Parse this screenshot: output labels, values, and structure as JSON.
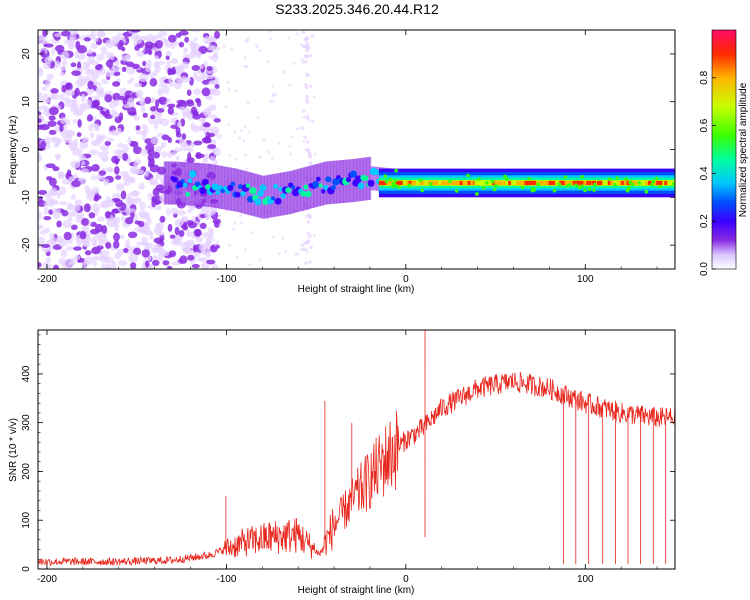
{
  "title": "S233.2025.346.20.44.R12",
  "colors": {
    "snr_line": "#e8281e",
    "axis": "#000000",
    "speckle": "#8a2be2",
    "colormap": [
      "#ffffff",
      "#e6d2ff",
      "#8a2be2",
      "#3b00ff",
      "#0050ff",
      "#00c8ff",
      "#00ff9c",
      "#3cff00",
      "#c8ff00",
      "#ffb400",
      "#ff2a00",
      "#ff0a64"
    ]
  },
  "chart_data": [
    {
      "type": "heatmap",
      "title": "",
      "xlabel": "Height of straight line (km)",
      "ylabel": "Frequency (Hz)",
      "xlim": [
        -205,
        150
      ],
      "ylim": [
        -25,
        25
      ],
      "xticks": [
        -200,
        -100,
        0,
        100
      ],
      "yticks": [
        -20,
        -10,
        0,
        10,
        20
      ],
      "colorbar": {
        "label": "Normalized spectral amplitude",
        "range": [
          0.0,
          1.0
        ],
        "ticks": [
          "0.0",
          "0.2",
          "0.4",
          "0.6",
          "0.8"
        ],
        "tick_values": [
          0.0,
          0.2,
          0.4,
          0.6,
          0.8
        ]
      },
      "features": {
        "noise_region_x": [
          -205,
          -110
        ],
        "trace_center_hz": [
          [
            -130,
            -7.0
          ],
          [
            -110,
            -7.5
          ],
          [
            -95,
            -8.5
          ],
          [
            -80,
            -10.0
          ],
          [
            -65,
            -9.0
          ],
          [
            -55,
            -8.0
          ],
          [
            -45,
            -7.0
          ],
          [
            -30,
            -6.5
          ],
          [
            -20,
            -6.0
          ],
          [
            0,
            -6.8
          ],
          [
            20,
            -7.0
          ],
          [
            60,
            -7.0
          ],
          [
            100,
            -7.0
          ],
          [
            150,
            -7.0
          ]
        ],
        "peak_band_x": [
          -15,
          150
        ],
        "peak_band_hz": -7.0
      }
    },
    {
      "type": "line",
      "title": "",
      "xlabel": "Height of straight line (km)",
      "ylabel": "SNR (10 * v/v)",
      "xlim": [
        -205,
        150
      ],
      "ylim": [
        0,
        490
      ],
      "xticks": [
        -200,
        -100,
        0,
        100
      ],
      "yticks": [
        0,
        100,
        200,
        300,
        400
      ],
      "series": [
        {
          "name": "SNR",
          "envelope_x": [
            -205,
            -160,
            -130,
            -110,
            -90,
            -75,
            -60,
            -48,
            -40,
            -30,
            -20,
            -10,
            0,
            10,
            20,
            40,
            60,
            80,
            100,
            120,
            140,
            150
          ],
          "envelope_y": [
            15,
            15,
            18,
            28,
            55,
            65,
            70,
            30,
            90,
            140,
            185,
            230,
            265,
            290,
            330,
            370,
            385,
            370,
            340,
            320,
            310,
            310
          ],
          "spikes": [
            [
              -100,
              150
            ],
            [
              -45,
              345
            ],
            [
              -30,
              300
            ],
            [
              11,
              490
            ],
            [
              11,
              65
            ],
            [
              88,
              10
            ],
            [
              95,
              10
            ],
            [
              102,
              10
            ],
            [
              110,
              10
            ],
            [
              117,
              10
            ],
            [
              124,
              10
            ],
            [
              131,
              10
            ],
            [
              138,
              10
            ],
            [
              145,
              10
            ]
          ]
        }
      ]
    }
  ]
}
